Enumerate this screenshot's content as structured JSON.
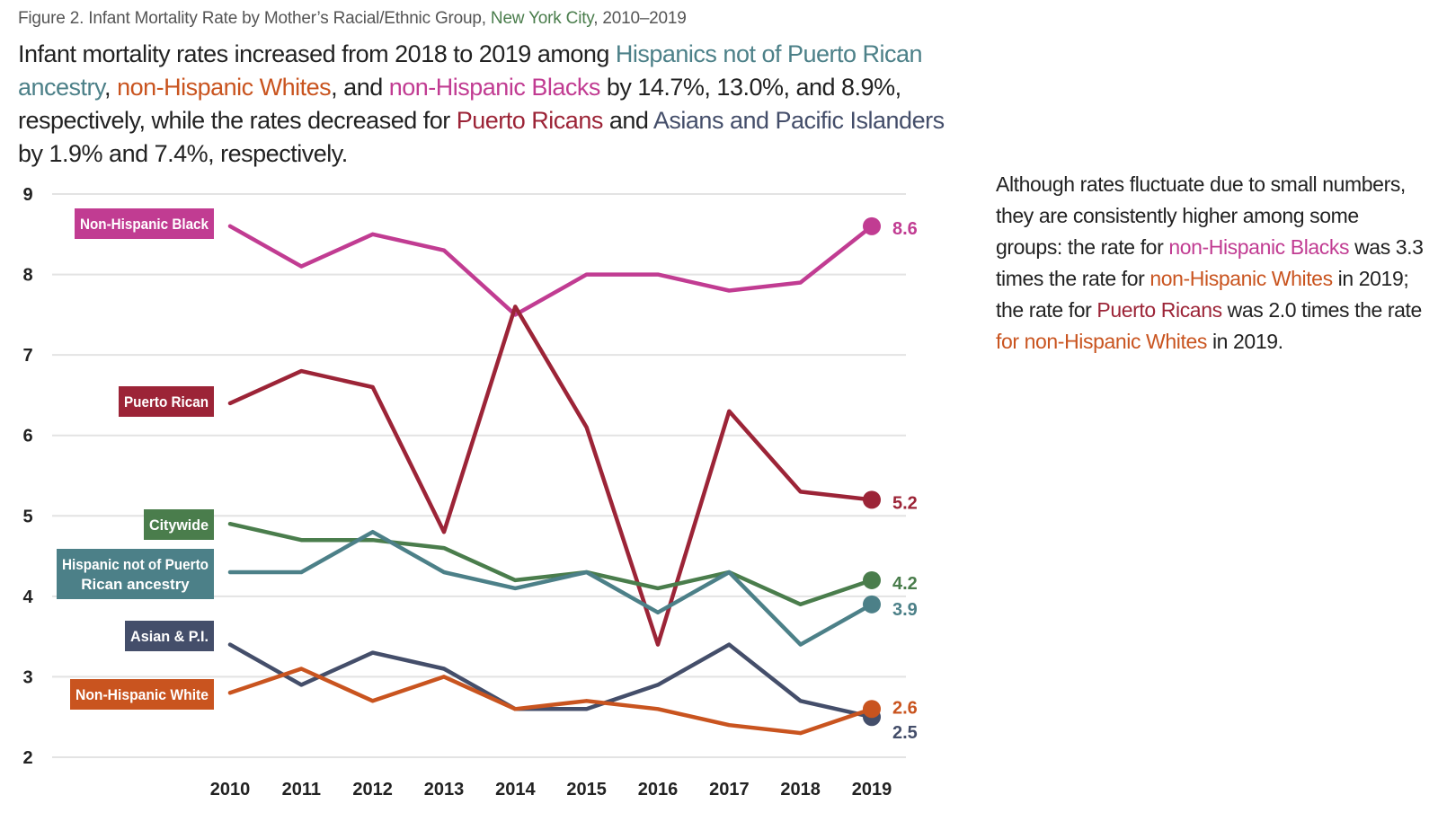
{
  "figure_label": {
    "prefix": "Figure 2. Infant Mortality Rate by Mother’s Racial/Ethnic Group, ",
    "place": "New York City",
    "suffix": ", 2010–2019"
  },
  "headline": {
    "p1": "Infant mortality rates increased from 2018 to 2019 among ",
    "g1": "Hispanics not of Puerto Rican ancestry",
    "p2": ", ",
    "g2": "non-Hispanic Whites",
    "p3": ", and ",
    "g3": "non-Hispanic Blacks",
    "p4": " by 14.7%, 13.0%, and 8.9%, respectively, while the rates decreased for ",
    "g4": "Puerto Ricans",
    "p5": " and ",
    "g5": "Asians and Pacific Islanders",
    "p6": " by 1.9% and 7.4%, respectively."
  },
  "side_note": {
    "p1": "Although rates fluctuate due to small numbers, they are consistently higher among some groups: the rate for ",
    "g1": "non-Hispanic Blacks",
    "p2": " was 3.3 times the rate for ",
    "g2": "non-Hispanic Whites",
    "p3": " in 2019; the rate for ",
    "g3": "Puerto Ricans",
    "p4": " was 2.0 times the rate ",
    "g4": "for non-Hispanic Whites",
    "p5": " in 2019."
  },
  "chart_data": {
    "type": "line",
    "title": "Infant Mortality Rate by Mother’s Racial/Ethnic Group, New York City, 2010–2019",
    "xlabel": "",
    "ylabel": "",
    "x": [
      "2010",
      "2011",
      "2012",
      "2013",
      "2014",
      "2015",
      "2016",
      "2017",
      "2018",
      "2019"
    ],
    "ylim": [
      2,
      9
    ],
    "yticks": [
      2,
      3,
      4,
      5,
      6,
      7,
      8,
      9
    ],
    "grid": true,
    "series": [
      {
        "key": "black",
        "name": "Non-Hispanic Black",
        "color": "#c13c92",
        "values": [
          8.6,
          8.1,
          8.5,
          8.3,
          7.5,
          8.0,
          8.0,
          7.8,
          7.9,
          8.6
        ],
        "end_label": "8.6"
      },
      {
        "key": "pr",
        "name": "Puerto Rican",
        "color": "#9c2437",
        "values": [
          6.4,
          6.8,
          6.6,
          4.8,
          7.6,
          6.1,
          3.4,
          6.3,
          5.3,
          5.2
        ],
        "end_label": "5.2"
      },
      {
        "key": "city",
        "name": "Citywide",
        "color": "#4a7d4c",
        "values": [
          4.9,
          4.7,
          4.7,
          4.6,
          4.2,
          4.3,
          4.1,
          4.3,
          3.9,
          4.2
        ],
        "end_label": "4.2"
      },
      {
        "key": "hisp",
        "name": "Hispanic not of Puerto Rican ancestry",
        "name_lines": [
          "Hispanic not of Puerto",
          "Rican ancestry"
        ],
        "color": "#4c8088",
        "values": [
          4.3,
          4.3,
          4.8,
          4.3,
          4.1,
          4.3,
          3.8,
          4.3,
          3.4,
          3.9
        ],
        "end_label": "3.9"
      },
      {
        "key": "asian",
        "name": "Asian & P.I.",
        "color": "#444e6a",
        "values": [
          3.4,
          2.9,
          3.3,
          3.1,
          2.6,
          2.6,
          2.9,
          3.4,
          2.7,
          2.5
        ],
        "end_label": "2.5"
      },
      {
        "key": "white",
        "name": "Non-Hispanic White",
        "color": "#c9541f",
        "values": [
          2.8,
          3.1,
          2.7,
          3.0,
          2.6,
          2.7,
          2.6,
          2.4,
          2.3,
          2.6
        ],
        "end_label": "2.6"
      }
    ]
  }
}
